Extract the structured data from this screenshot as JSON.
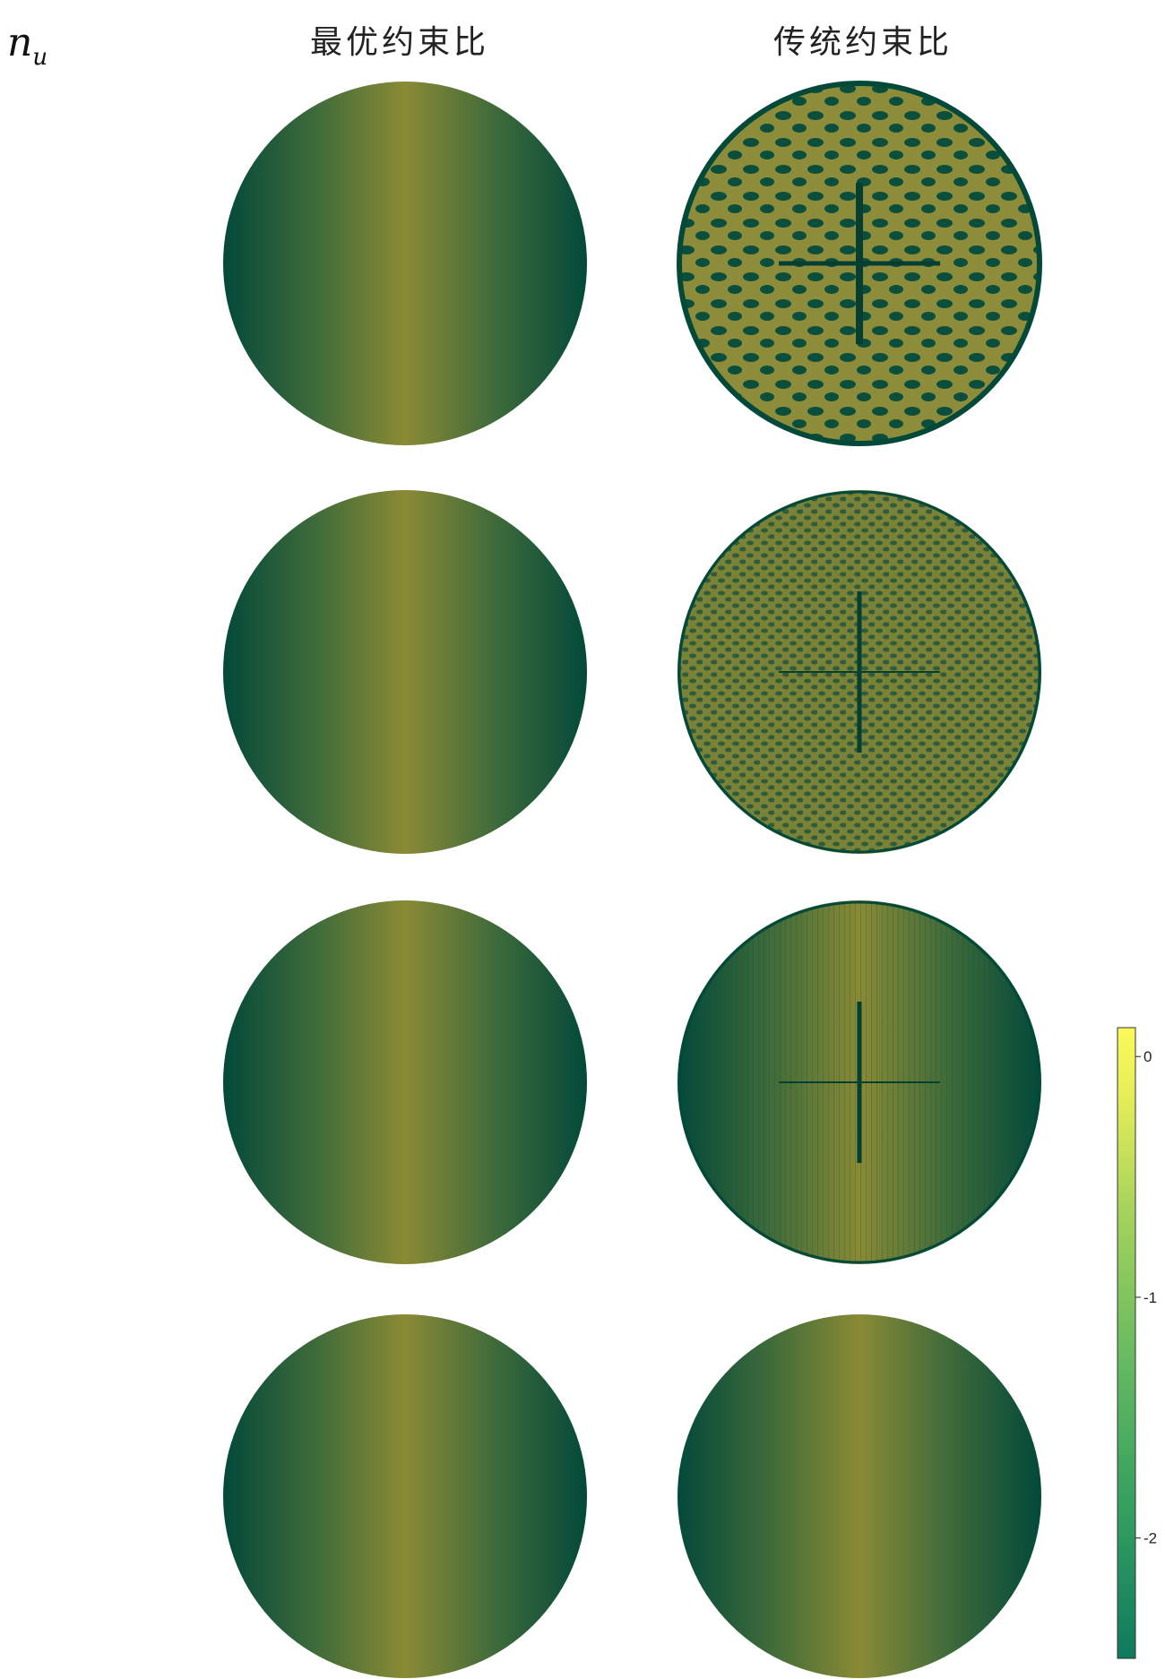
{
  "header": {
    "variable_label": "n",
    "variable_subscript": "u",
    "columns": [
      "最优约束比",
      "传统约束比"
    ]
  },
  "panels": {
    "rows": 4,
    "left_column": [
      {
        "pattern": "smooth"
      },
      {
        "pattern": "smooth"
      },
      {
        "pattern": "smooth"
      },
      {
        "pattern": "smooth"
      }
    ],
    "right_column": [
      {
        "pattern": "strong-oscillation"
      },
      {
        "pattern": "moderate-oscillation"
      },
      {
        "pattern": "weak-oscillation"
      },
      {
        "pattern": "smooth"
      }
    ]
  },
  "colorbar": {
    "ticks": [
      {
        "value": 0,
        "label": "0"
      },
      {
        "value": -1,
        "label": "-1"
      },
      {
        "value": -2,
        "label": "-2"
      }
    ],
    "range": [
      -2.5,
      0.12
    ],
    "colors": [
      "#0f7a5e",
      "#2e9a5f",
      "#5fb860",
      "#a3d25c",
      "#e8ee58",
      "#fbf95a"
    ]
  },
  "field_colors": {
    "edge": "#03493a",
    "center": "#8a8a35"
  }
}
